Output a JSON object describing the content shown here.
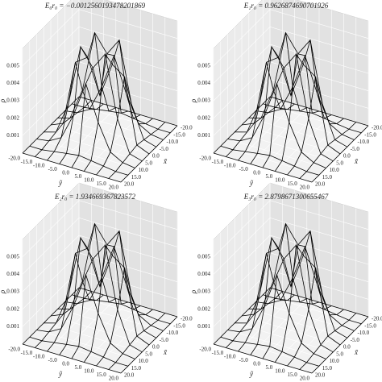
{
  "chart_data": [
    {
      "type": "surface3d",
      "title": "E₀r₀ = −0.0012560193478201869",
      "xlabel": "ỹ",
      "ylabel": "x̃",
      "zlabel": "ρ",
      "color": "#000000",
      "x": [
        -20,
        -15,
        -10,
        -5,
        0,
        5,
        10,
        15,
        20
      ],
      "y": [
        -20,
        -15,
        -10,
        -5,
        0,
        5,
        10,
        15,
        20
      ],
      "z": [
        [
          0,
          0,
          0,
          0,
          0,
          0,
          0,
          0,
          0
        ],
        [
          0,
          0,
          0.0001,
          0.0002,
          0.0003,
          0.0002,
          0.0001,
          0,
          0
        ],
        [
          0,
          0.0001,
          0.0005,
          0.002,
          0.004,
          0.002,
          0.0005,
          0.0001,
          0
        ],
        [
          0,
          0.0002,
          0.002,
          0.0055,
          0.0045,
          0.0055,
          0.002,
          0.0002,
          0
        ],
        [
          0,
          0.0003,
          0.004,
          0.0045,
          0.0025,
          0.0045,
          0.004,
          0.0003,
          0
        ],
        [
          0,
          0.0002,
          0.002,
          0.0055,
          0.0045,
          0.0055,
          0.002,
          0.0002,
          0
        ],
        [
          0,
          0.0001,
          0.0005,
          0.002,
          0.004,
          0.002,
          0.0005,
          0.0001,
          0
        ],
        [
          0,
          0,
          0.0001,
          0.0002,
          0.0003,
          0.0002,
          0.0001,
          0,
          0
        ],
        [
          0,
          0,
          0,
          0,
          0,
          0,
          0,
          0,
          0
        ]
      ],
      "xlim": [
        -20,
        20
      ],
      "ylim": [
        -20,
        20
      ],
      "zlim": [
        0,
        0.006
      ],
      "xticks": [
        {
          "value": -20,
          "label": "-20.0"
        },
        {
          "value": -15,
          "label": "-15.0"
        },
        {
          "value": -10,
          "label": "-10.0"
        },
        {
          "value": -5,
          "label": "-5.0"
        },
        {
          "value": 0,
          "label": "0.0"
        },
        {
          "value": 5,
          "label": "5.0"
        },
        {
          "value": 10,
          "label": "10.0"
        },
        {
          "value": 15,
          "label": "15.0"
        },
        {
          "value": 20,
          "label": "20.0"
        }
      ],
      "yticks": [
        {
          "value": -20,
          "label": "-20.0"
        },
        {
          "value": -15,
          "label": "-15.0"
        },
        {
          "value": -10,
          "label": "-10.0"
        },
        {
          "value": -5,
          "label": "-5.0"
        },
        {
          "value": 0,
          "label": "0.0"
        },
        {
          "value": 5,
          "label": "5.0"
        },
        {
          "value": 10,
          "label": "10.0"
        },
        {
          "value": 15,
          "label": "15.0"
        },
        {
          "value": 20,
          "label": "20.0"
        }
      ],
      "zticks": [
        0.001,
        0.002,
        0.003,
        0.004,
        0.005
      ]
    },
    {
      "type": "surface3d",
      "title": "E₁r₀ = 0.9626874690701926",
      "xlabel": "ỹ",
      "ylabel": "x̃",
      "zlabel": "ρ",
      "color": "#000000",
      "x": [
        -20,
        -15,
        -10,
        -5,
        0,
        5,
        10,
        15,
        20
      ],
      "y": [
        -20,
        -15,
        -10,
        -5,
        0,
        5,
        10,
        15,
        20
      ],
      "z": [
        [
          0,
          0,
          0,
          0,
          0,
          0,
          0,
          0,
          0
        ],
        [
          0,
          0,
          0.0001,
          0.0002,
          0.0003,
          0.0002,
          0.0001,
          0,
          0
        ],
        [
          0,
          0.0001,
          0.0005,
          0.002,
          0.004,
          0.002,
          0.0005,
          0.0001,
          0
        ],
        [
          0,
          0.0002,
          0.002,
          0.0055,
          0.0045,
          0.0055,
          0.002,
          0.0002,
          0
        ],
        [
          0,
          0.0003,
          0.004,
          0.0045,
          0.0025,
          0.0045,
          0.004,
          0.0003,
          0
        ],
        [
          0,
          0.0002,
          0.002,
          0.0055,
          0.0045,
          0.0055,
          0.002,
          0.0002,
          0
        ],
        [
          0,
          0.0001,
          0.0005,
          0.002,
          0.004,
          0.002,
          0.0005,
          0.0001,
          0
        ],
        [
          0,
          0,
          0.0001,
          0.0002,
          0.0003,
          0.0002,
          0.0001,
          0,
          0
        ],
        [
          0,
          0,
          0,
          0,
          0,
          0,
          0,
          0,
          0
        ]
      ],
      "xlim": [
        -20,
        20
      ],
      "ylim": [
        -20,
        20
      ],
      "zlim": [
        0,
        0.006
      ],
      "xticks": [
        {
          "value": -20,
          "label": "-20.0"
        },
        {
          "value": -15,
          "label": "-15.0"
        },
        {
          "value": -10,
          "label": "-10.0"
        },
        {
          "value": -5,
          "label": "-5.0"
        },
        {
          "value": 0,
          "label": "0.0"
        },
        {
          "value": 5,
          "label": "5.0"
        },
        {
          "value": 10,
          "label": "10.0"
        },
        {
          "value": 15,
          "label": "15.0"
        },
        {
          "value": 20,
          "label": "20.0"
        }
      ],
      "yticks": [
        {
          "value": -20,
          "label": "-20.0"
        },
        {
          "value": -15,
          "label": "-15.0"
        },
        {
          "value": -10,
          "label": "-10.0"
        },
        {
          "value": -5,
          "label": "-5.0"
        },
        {
          "value": 0,
          "label": "0.0"
        },
        {
          "value": 5,
          "label": "5.0"
        },
        {
          "value": 10,
          "label": "10.0"
        },
        {
          "value": 15,
          "label": "15.0"
        },
        {
          "value": 20,
          "label": "20.0"
        }
      ],
      "zticks": [
        0.001,
        0.002,
        0.003,
        0.004,
        0.005
      ]
    },
    {
      "type": "surface3d",
      "title": "E₂r₀ = 1.934669367823572",
      "xlabel": "ỹ",
      "ylabel": "x̃",
      "zlabel": "ρ",
      "color": "#000000",
      "x": [
        -20,
        -15,
        -10,
        -5,
        0,
        5,
        10,
        15,
        20
      ],
      "y": [
        -20,
        -15,
        -10,
        -5,
        0,
        5,
        10,
        15,
        20
      ],
      "z": [
        [
          0,
          0,
          0,
          0,
          0,
          0,
          0,
          0,
          0
        ],
        [
          0,
          0,
          0.0001,
          0.0002,
          0.0003,
          0.0002,
          0.0001,
          0,
          0
        ],
        [
          0,
          0.0001,
          0.0005,
          0.002,
          0.004,
          0.002,
          0.0005,
          0.0001,
          0
        ],
        [
          0,
          0.0002,
          0.002,
          0.0055,
          0.0045,
          0.0055,
          0.002,
          0.0002,
          0
        ],
        [
          0,
          0.0003,
          0.004,
          0.0045,
          0.0025,
          0.0045,
          0.004,
          0.0003,
          0
        ],
        [
          0,
          0.0002,
          0.002,
          0.0055,
          0.0045,
          0.0055,
          0.002,
          0.0002,
          0
        ],
        [
          0,
          0.0001,
          0.0005,
          0.002,
          0.004,
          0.002,
          0.0005,
          0.0001,
          0
        ],
        [
          0,
          0,
          0.0001,
          0.0002,
          0.0003,
          0.0002,
          0.0001,
          0,
          0
        ],
        [
          0,
          0,
          0,
          0,
          0,
          0,
          0,
          0,
          0
        ]
      ],
      "xlim": [
        -20,
        20
      ],
      "ylim": [
        -20,
        20
      ],
      "zlim": [
        0,
        0.006
      ],
      "xticks": [
        {
          "value": -20,
          "label": "-20.0"
        },
        {
          "value": -15,
          "label": "-15.0"
        },
        {
          "value": -10,
          "label": "-10.0"
        },
        {
          "value": -5,
          "label": "-5.0"
        },
        {
          "value": 0,
          "label": "0.0"
        },
        {
          "value": 5,
          "label": "5.0"
        },
        {
          "value": 10,
          "label": "10.0"
        },
        {
          "value": 15,
          "label": "15.0"
        },
        {
          "value": 20,
          "label": "20.0"
        }
      ],
      "yticks": [
        {
          "value": -20,
          "label": "-20.0"
        },
        {
          "value": -15,
          "label": "-15.0"
        },
        {
          "value": -10,
          "label": "-10.0"
        },
        {
          "value": -5,
          "label": "-5.0"
        },
        {
          "value": 0,
          "label": "0.0"
        },
        {
          "value": 5,
          "label": "5.0"
        },
        {
          "value": 10,
          "label": "10.0"
        },
        {
          "value": 15,
          "label": "15.0"
        },
        {
          "value": 20,
          "label": "20.0"
        }
      ],
      "zticks": [
        0.001,
        0.002,
        0.003,
        0.004,
        0.005
      ]
    },
    {
      "type": "surface3d",
      "title": "E₃r₀ = 2.8798671300655467",
      "xlabel": "ỹ",
      "ylabel": "x̃",
      "zlabel": "ρ",
      "color": "#000000",
      "x": [
        -20,
        -15,
        -10,
        -5,
        0,
        5,
        10,
        15,
        20
      ],
      "y": [
        -20,
        -15,
        -10,
        -5,
        0,
        5,
        10,
        15,
        20
      ],
      "z": [
        [
          0,
          0,
          0,
          0,
          0,
          0,
          0,
          0,
          0
        ],
        [
          0,
          0,
          0.0001,
          0.0002,
          0.0003,
          0.0002,
          0.0001,
          0,
          0
        ],
        [
          0,
          0.0001,
          0.0005,
          0.002,
          0.004,
          0.002,
          0.0005,
          0.0001,
          0
        ],
        [
          0,
          0.0002,
          0.002,
          0.0055,
          0.0045,
          0.0055,
          0.002,
          0.0002,
          0
        ],
        [
          0,
          0.0003,
          0.004,
          0.0045,
          0.0025,
          0.0045,
          0.004,
          0.0003,
          0
        ],
        [
          0,
          0.0002,
          0.002,
          0.0055,
          0.0045,
          0.0055,
          0.002,
          0.0002,
          0
        ],
        [
          0,
          0.0001,
          0.0005,
          0.002,
          0.004,
          0.002,
          0.0005,
          0.0001,
          0
        ],
        [
          0,
          0,
          0.0001,
          0.0002,
          0.0003,
          0.0002,
          0.0001,
          0,
          0
        ],
        [
          0,
          0,
          0,
          0,
          0,
          0,
          0,
          0,
          0
        ]
      ],
      "xlim": [
        -20,
        20
      ],
      "ylim": [
        -20,
        20
      ],
      "zlim": [
        0,
        0.006
      ],
      "xticks": [
        {
          "value": -20,
          "label": "-20.0"
        },
        {
          "value": -15,
          "label": "-15.0"
        },
        {
          "value": -10,
          "label": "-10.0"
        },
        {
          "value": -5,
          "label": "-5.0"
        },
        {
          "value": 0,
          "label": "0.0"
        },
        {
          "value": 5,
          "label": "5.0"
        },
        {
          "value": 10,
          "label": "10.0"
        },
        {
          "value": 15,
          "label": "15.0"
        },
        {
          "value": 20,
          "label": "20.0"
        }
      ],
      "yticks": [
        {
          "value": -20,
          "label": "-20.0"
        },
        {
          "value": -15,
          "label": "-15.0"
        },
        {
          "value": -10,
          "label": "-10.0"
        },
        {
          "value": -5,
          "label": "-5.0"
        },
        {
          "value": 0,
          "label": "0.0"
        },
        {
          "value": 5,
          "label": "5.0"
        },
        {
          "value": 10,
          "label": "10.0"
        },
        {
          "value": 15,
          "label": "15.0"
        },
        {
          "value": 20,
          "label": "20.0"
        }
      ],
      "zticks": [
        0.001,
        0.002,
        0.003,
        0.004,
        0.005
      ]
    }
  ]
}
